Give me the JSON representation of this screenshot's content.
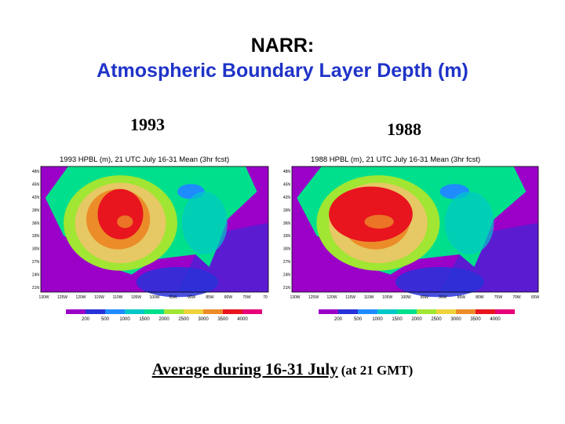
{
  "slide": {
    "title": "NARR:",
    "subtitle": "Atmospheric Boundary Layer Depth (m)",
    "caption_main": "Average during 16-31 July",
    "caption_note": "(at 21 GMT)"
  },
  "maps": [
    {
      "year": "1993",
      "map_title": "1993 HPBL (m), 21 UTC July 16-31 Mean (3hr fcst)",
      "lon_ticks": [
        "130W",
        "125W",
        "120W",
        "115W",
        "110W",
        "105W",
        "100W",
        "95W",
        "90W",
        "85W",
        "80W",
        "75W",
        "70"
      ],
      "lat_ticks": [
        "48N",
        "45N",
        "42N",
        "39N",
        "36N",
        "33N",
        "30N",
        "27N",
        "24N",
        "21N"
      ],
      "hot_extent": "moderate"
    },
    {
      "year": "1988",
      "map_title": "1988 HPBL (m), 21 UTC July 16-31 Mean (3hr fcst)",
      "lon_ticks": [
        "130W",
        "125W",
        "120W",
        "115W",
        "110W",
        "105W",
        "100W",
        "95W",
        "90W",
        "85W",
        "80W",
        "75W",
        "70W",
        "65W"
      ],
      "lat_ticks": [
        "48N",
        "45N",
        "42N",
        "39N",
        "36N",
        "33N",
        "30N",
        "27N",
        "24N",
        "21N"
      ],
      "hot_extent": "extensive"
    }
  ],
  "legend": {
    "labels": [
      "200",
      "500",
      "1000",
      "1500",
      "2000",
      "2500",
      "3000",
      "3500",
      "4000"
    ],
    "colors": [
      "#9a00c8",
      "#2832d8",
      "#1e8cff",
      "#00c8c8",
      "#00e08c",
      "#a0e632",
      "#f0d23c",
      "#eb8c28",
      "#e8141e",
      "#e6007a"
    ]
  },
  "palette": {
    "ocean": "#9a00c8",
    "water_blue": "#2832d8",
    "lake_blue": "#1e8cff",
    "cyan": "#00c8c8",
    "green": "#00e08c",
    "yellow_green": "#a0e632",
    "tan": "#e6c864",
    "orange": "#eb8c28",
    "red": "#e8141e",
    "title_blue": "#1f33c8"
  }
}
